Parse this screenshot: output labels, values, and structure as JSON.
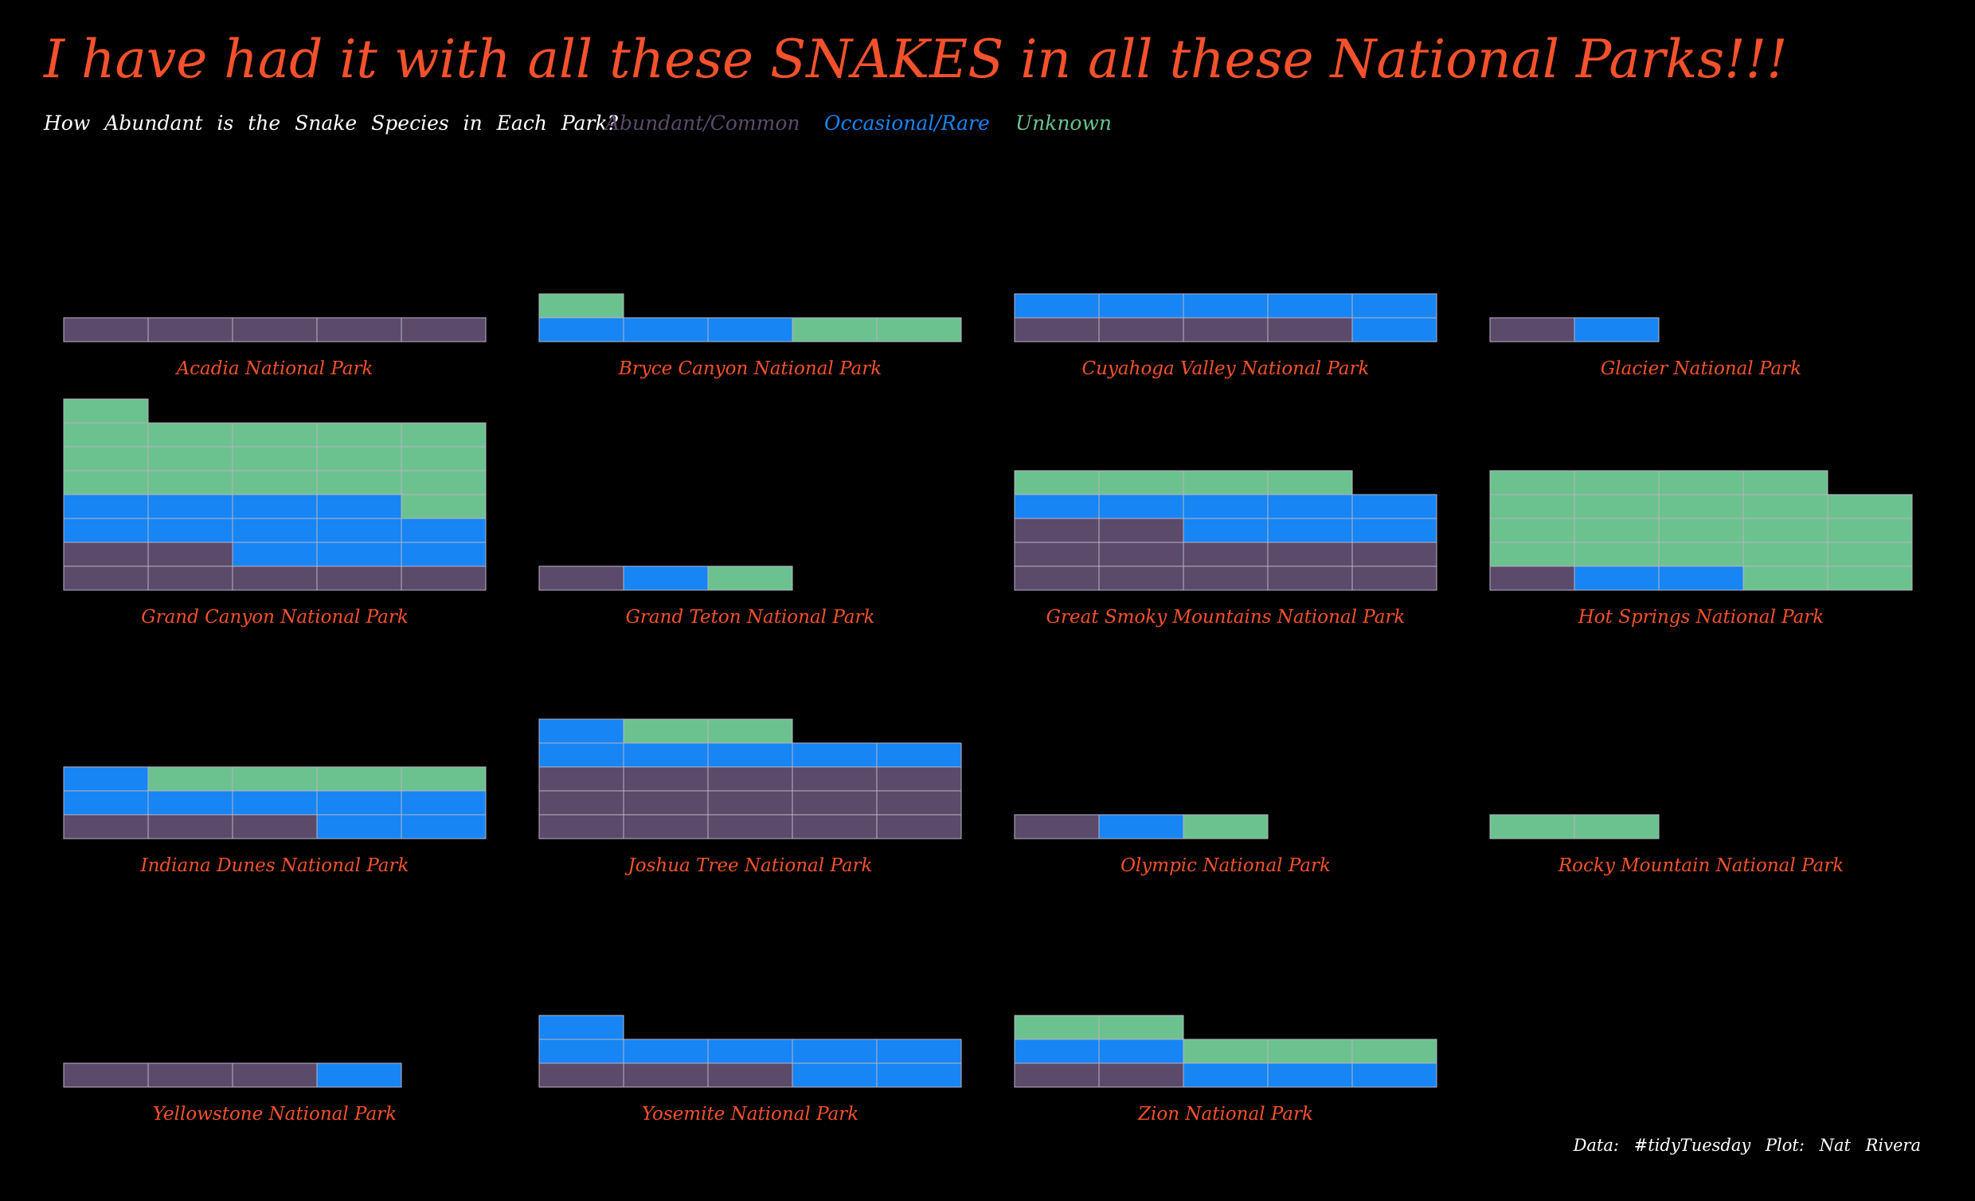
{
  "title": "I have had it with all these SNAKES in all these National Parks!!!",
  "subtitle": "How Abundant is the Snake Species in Each Park?",
  "caption": "Data: #tidyTuesday    Plot: Nat Rivera",
  "legend": [
    {
      "label": "Abundant/Common",
      "color": "#5c4a6b"
    },
    {
      "label": "Occasional/Rare",
      "color": "#1785f4"
    },
    {
      "label": "Unknown",
      "color": "#6cc28e"
    }
  ],
  "chart_data": {
    "type": "waffle",
    "units_per_row": 5,
    "categories": [
      "Abundant/Common",
      "Occasional/Rare",
      "Unknown"
    ],
    "colors": {
      "Abundant/Common": "#5c4a6b",
      "Occasional/Rare": "#1785f4",
      "Unknown": "#6cc28e"
    },
    "parks": [
      {
        "name": "Acadia National Park",
        "counts": {
          "Abundant/Common": 5,
          "Occasional/Rare": 0,
          "Unknown": 0
        }
      },
      {
        "name": "Bryce Canyon National Park",
        "counts": {
          "Abundant/Common": 0,
          "Occasional/Rare": 3,
          "Unknown": 3
        }
      },
      {
        "name": "Cuyahoga Valley National Park",
        "counts": {
          "Abundant/Common": 4,
          "Occasional/Rare": 6,
          "Unknown": 0
        }
      },
      {
        "name": "Glacier National Park",
        "counts": {
          "Abundant/Common": 1,
          "Occasional/Rare": 1,
          "Unknown": 0
        }
      },
      {
        "name": "Grand Canyon National Park",
        "counts": {
          "Abundant/Common": 7,
          "Occasional/Rare": 12,
          "Unknown": 17
        }
      },
      {
        "name": "Grand Teton National Park",
        "counts": {
          "Abundant/Common": 1,
          "Occasional/Rare": 1,
          "Unknown": 1
        }
      },
      {
        "name": "Great Smoky Mountains National Park",
        "counts": {
          "Abundant/Common": 12,
          "Occasional/Rare": 8,
          "Unknown": 4
        }
      },
      {
        "name": "Hot Springs National Park",
        "counts": {
          "Abundant/Common": 1,
          "Occasional/Rare": 2,
          "Unknown": 21
        }
      },
      {
        "name": "Indiana Dunes National Park",
        "counts": {
          "Abundant/Common": 3,
          "Occasional/Rare": 8,
          "Unknown": 4
        }
      },
      {
        "name": "Joshua Tree National Park",
        "counts": {
          "Abundant/Common": 15,
          "Occasional/Rare": 6,
          "Unknown": 2
        }
      },
      {
        "name": "Olympic National Park",
        "counts": {
          "Abundant/Common": 1,
          "Occasional/Rare": 1,
          "Unknown": 1
        }
      },
      {
        "name": "Rocky Mountain National Park",
        "counts": {
          "Abundant/Common": 0,
          "Occasional/Rare": 0,
          "Unknown": 2
        }
      },
      {
        "name": "Yellowstone National Park",
        "counts": {
          "Abundant/Common": 3,
          "Occasional/Rare": 1,
          "Unknown": 0
        }
      },
      {
        "name": "Yosemite National Park",
        "counts": {
          "Abundant/Common": 3,
          "Occasional/Rare": 8,
          "Unknown": 0
        }
      },
      {
        "name": "Zion National Park",
        "counts": {
          "Abundant/Common": 2,
          "Occasional/Rare": 5,
          "Unknown": 5
        }
      }
    ]
  }
}
